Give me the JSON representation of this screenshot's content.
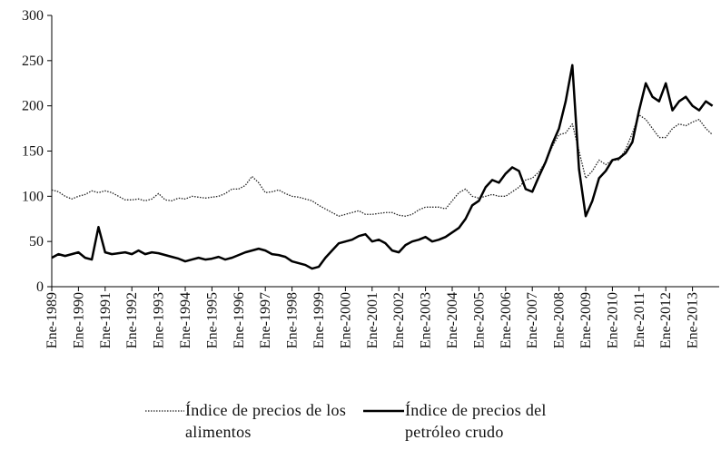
{
  "chart_data": {
    "type": "line",
    "categories": [
      "Ene-1989",
      null,
      null,
      null,
      "Ene-1990",
      null,
      null,
      null,
      "Ene-1991",
      null,
      null,
      null,
      "Ene-1992",
      null,
      null,
      null,
      "Ene-1993",
      null,
      null,
      null,
      "Ene-1994",
      null,
      null,
      null,
      "Ene-1995",
      null,
      null,
      null,
      "Ene-1996",
      null,
      null,
      null,
      "Ene-1997",
      null,
      null,
      null,
      "Ene-1998",
      null,
      null,
      null,
      "Ene-1999",
      null,
      null,
      null,
      "Ene-2000",
      null,
      null,
      null,
      "Ene-2001",
      null,
      null,
      null,
      "Ene-2002",
      null,
      null,
      null,
      "Ene-2003",
      null,
      null,
      null,
      "Ene-2004",
      null,
      null,
      null,
      "Ene-2005",
      null,
      null,
      null,
      "Ene-2006",
      null,
      null,
      null,
      "Ene-2007",
      null,
      null,
      null,
      "Ene-2008",
      null,
      null,
      null,
      "Ene-2009",
      null,
      null,
      null,
      "Ene-2010",
      null,
      null,
      null,
      "Ene-2011",
      null,
      null,
      null,
      "Ene-2012",
      null,
      null,
      null,
      "Ene-2013",
      null,
      null,
      null
    ],
    "series": [
      {
        "name": "Índice de precios de los alimentos",
        "color": "#222222",
        "style": "dotted",
        "values": [
          107,
          105,
          100,
          97,
          100,
          102,
          106,
          104,
          106,
          104,
          100,
          96,
          96,
          97,
          95,
          97,
          103,
          96,
          95,
          98,
          97,
          100,
          99,
          98,
          99,
          100,
          103,
          108,
          108,
          112,
          122,
          115,
          104,
          105,
          107,
          103,
          100,
          99,
          97,
          95,
          90,
          86,
          82,
          78,
          80,
          82,
          84,
          80,
          80,
          81,
          82,
          82,
          79,
          78,
          80,
          85,
          88,
          88,
          88,
          86,
          95,
          104,
          108,
          100,
          98,
          100,
          102,
          100,
          100,
          105,
          110,
          118,
          120,
          127,
          138,
          155,
          168,
          170,
          180,
          150,
          120,
          128,
          140,
          135,
          140,
          140,
          152,
          170,
          190,
          185,
          175,
          165,
          165,
          175,
          180,
          178,
          182,
          185,
          175,
          168
        ]
      },
      {
        "name": "Índice de precios del petróleo crudo",
        "color": "#000000",
        "style": "solid",
        "values": [
          32,
          36,
          34,
          36,
          38,
          32,
          30,
          66,
          38,
          36,
          37,
          38,
          36,
          40,
          36,
          38,
          37,
          35,
          33,
          31,
          28,
          30,
          32,
          30,
          31,
          33,
          30,
          32,
          35,
          38,
          40,
          42,
          40,
          36,
          35,
          33,
          28,
          26,
          24,
          20,
          22,
          32,
          40,
          48,
          50,
          52,
          56,
          58,
          50,
          52,
          48,
          40,
          38,
          46,
          50,
          52,
          55,
          50,
          52,
          55,
          60,
          65,
          75,
          90,
          95,
          110,
          118,
          115,
          125,
          132,
          128,
          108,
          105,
          122,
          138,
          158,
          175,
          205,
          245,
          130,
          78,
          95,
          120,
          128,
          140,
          142,
          148,
          160,
          195,
          225,
          210,
          205,
          225,
          195,
          205,
          210,
          200,
          195,
          205,
          200
        ]
      }
    ],
    "ylim": [
      0,
      300
    ],
    "yticks": [
      0,
      50,
      100,
      150,
      200,
      250,
      300
    ],
    "grid": false,
    "legend": "bottom"
  }
}
